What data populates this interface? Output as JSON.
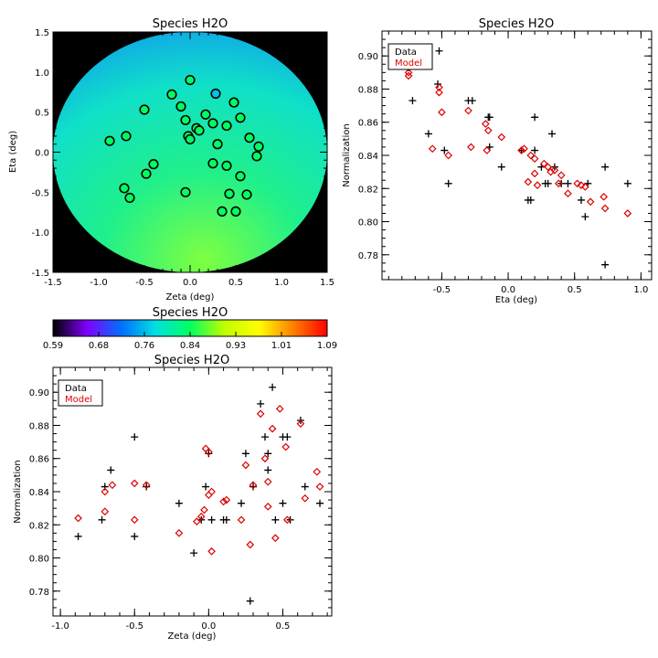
{
  "chart_data": [
    {
      "id": "map",
      "type": "scatter",
      "title": "Species H2O",
      "xlabel": "Zeta (deg)",
      "ylabel": "Eta (deg)",
      "xlim": [
        -1.5,
        1.5
      ],
      "ylim": [
        -1.5,
        1.5
      ],
      "xticks": [
        "-1.5",
        "-1.0",
        "-0.5",
        "0.0",
        "0.5",
        "1.0",
        "1.5"
      ],
      "yticks": [
        "-1.5",
        "-1.0",
        "-0.5",
        "0.0",
        "0.5",
        "1.0",
        "1.5"
      ],
      "background_color": "#000000",
      "field": {
        "shape": "circle",
        "radius": 1.5,
        "value_low_corner": 0.9,
        "value_high_corner": 0.78
      },
      "points": [
        {
          "x": -0.88,
          "y": 0.14,
          "v": 0.84
        },
        {
          "x": -0.7,
          "y": 0.2,
          "v": 0.84
        },
        {
          "x": -0.72,
          "y": -0.45,
          "v": 0.84
        },
        {
          "x": -0.66,
          "y": -0.57,
          "v": 0.84
        },
        {
          "x": -0.5,
          "y": 0.53,
          "v": 0.84
        },
        {
          "x": -0.48,
          "y": -0.27,
          "v": 0.84
        },
        {
          "x": -0.4,
          "y": -0.15,
          "v": 0.84
        },
        {
          "x": -0.2,
          "y": 0.72,
          "v": 0.84
        },
        {
          "x": -0.1,
          "y": 0.57,
          "v": 0.84
        },
        {
          "x": -0.05,
          "y": 0.4,
          "v": 0.84
        },
        {
          "x": -0.02,
          "y": 0.2,
          "v": 0.84
        },
        {
          "x": 0.0,
          "y": 0.16,
          "v": 0.84
        },
        {
          "x": 0.0,
          "y": 0.9,
          "v": 0.84
        },
        {
          "x": 0.07,
          "y": 0.3,
          "v": 0.84
        },
        {
          "x": 0.1,
          "y": 0.27,
          "v": 0.84
        },
        {
          "x": -0.05,
          "y": -0.5,
          "v": 0.84
        },
        {
          "x": 0.17,
          "y": 0.47,
          "v": 0.84
        },
        {
          "x": 0.25,
          "y": 0.36,
          "v": 0.84
        },
        {
          "x": 0.28,
          "y": 0.73,
          "v": 0.76
        },
        {
          "x": 0.3,
          "y": 0.1,
          "v": 0.84
        },
        {
          "x": 0.25,
          "y": -0.14,
          "v": 0.84
        },
        {
          "x": 0.4,
          "y": 0.33,
          "v": 0.84
        },
        {
          "x": 0.4,
          "y": -0.17,
          "v": 0.84
        },
        {
          "x": 0.43,
          "y": -0.52,
          "v": 0.84
        },
        {
          "x": 0.35,
          "y": -0.74,
          "v": 0.84
        },
        {
          "x": 0.5,
          "y": -0.74,
          "v": 0.84
        },
        {
          "x": 0.48,
          "y": 0.62,
          "v": 0.84
        },
        {
          "x": 0.55,
          "y": 0.43,
          "v": 0.84
        },
        {
          "x": 0.55,
          "y": -0.3,
          "v": 0.84
        },
        {
          "x": 0.62,
          "y": -0.53,
          "v": 0.84
        },
        {
          "x": 0.65,
          "y": 0.18,
          "v": 0.84
        },
        {
          "x": 0.75,
          "y": 0.07,
          "v": 0.84
        },
        {
          "x": 0.73,
          "y": -0.05,
          "v": 0.84
        }
      ]
    },
    {
      "id": "colorbar",
      "type": "heatmap",
      "title": "Species H2O",
      "vmin": 0.59,
      "vmax": 1.09,
      "ticks": [
        "0.59",
        "0.68",
        "0.76",
        "0.84",
        "0.93",
        "1.01",
        "1.09"
      ],
      "colormap": [
        "#000000",
        "#8000ff",
        "#0070ff",
        "#00e0e0",
        "#00ff60",
        "#c0ff00",
        "#ffff00",
        "#ff8000",
        "#ff0000"
      ]
    },
    {
      "id": "eta",
      "type": "scatter",
      "title": "Species H2O",
      "xlabel": "Eta (deg)",
      "ylabel": "Normalization",
      "xlim": [
        -0.95,
        1.08
      ],
      "ylim": [
        0.765,
        0.915
      ],
      "xticks": [
        "-0.5",
        "0.0",
        "0.5",
        "1.0"
      ],
      "yticks": [
        "0.78",
        "0.80",
        "0.82",
        "0.84",
        "0.86",
        "0.88",
        "0.90"
      ],
      "legend": {
        "placement": "top-left",
        "entries": [
          "Data",
          "Model"
        ]
      },
      "series": [
        {
          "name": "Data",
          "marker": "plus",
          "color": "#000000",
          "points": [
            [
              -0.75,
              0.893
            ],
            [
              -0.72,
              0.873
            ],
            [
              -0.52,
              0.903
            ],
            [
              -0.53,
              0.883
            ],
            [
              -0.48,
              0.843
            ],
            [
              -0.45,
              0.823
            ],
            [
              -0.6,
              0.853
            ],
            [
              -0.3,
              0.873
            ],
            [
              -0.27,
              0.873
            ],
            [
              -0.15,
              0.863
            ],
            [
              -0.14,
              0.863
            ],
            [
              -0.14,
              0.845
            ],
            [
              -0.05,
              0.833
            ],
            [
              0.1,
              0.843
            ],
            [
              0.15,
              0.813
            ],
            [
              0.17,
              0.813
            ],
            [
              0.2,
              0.863
            ],
            [
              0.2,
              0.843
            ],
            [
              0.25,
              0.833
            ],
            [
              0.28,
              0.823
            ],
            [
              0.3,
              0.823
            ],
            [
              0.33,
              0.853
            ],
            [
              0.35,
              0.833
            ],
            [
              0.4,
              0.823
            ],
            [
              0.45,
              0.823
            ],
            [
              0.55,
              0.813
            ],
            [
              0.6,
              0.823
            ],
            [
              0.58,
              0.803
            ],
            [
              0.73,
              0.833
            ],
            [
              0.73,
              0.774
            ],
            [
              0.9,
              0.823
            ]
          ]
        },
        {
          "name": "Model",
          "marker": "diamond",
          "color": "#dd0000",
          "points": [
            [
              -0.75,
              0.888
            ],
            [
              -0.75,
              0.89
            ],
            [
              -0.52,
              0.881
            ],
            [
              -0.52,
              0.878
            ],
            [
              -0.5,
              0.866
            ],
            [
              -0.45,
              0.84
            ],
            [
              -0.57,
              0.844
            ],
            [
              -0.3,
              0.867
            ],
            [
              -0.28,
              0.845
            ],
            [
              -0.17,
              0.859
            ],
            [
              -0.15,
              0.855
            ],
            [
              -0.16,
              0.843
            ],
            [
              -0.05,
              0.851
            ],
            [
              0.1,
              0.843
            ],
            [
              0.12,
              0.844
            ],
            [
              0.15,
              0.824
            ],
            [
              0.17,
              0.84
            ],
            [
              0.2,
              0.838
            ],
            [
              0.2,
              0.829
            ],
            [
              0.22,
              0.822
            ],
            [
              0.27,
              0.835
            ],
            [
              0.3,
              0.833
            ],
            [
              0.32,
              0.83
            ],
            [
              0.35,
              0.831
            ],
            [
              0.38,
              0.823
            ],
            [
              0.4,
              0.828
            ],
            [
              0.45,
              0.817
            ],
            [
              0.52,
              0.823
            ],
            [
              0.55,
              0.822
            ],
            [
              0.58,
              0.821
            ],
            [
              0.62,
              0.812
            ],
            [
              0.72,
              0.815
            ],
            [
              0.73,
              0.808
            ],
            [
              0.9,
              0.805
            ]
          ]
        }
      ]
    },
    {
      "id": "zeta",
      "type": "scatter",
      "title": "Species H2O",
      "xlabel": "Zeta (deg)",
      "ylabel": "Normalization",
      "xlim": [
        -1.05,
        0.83
      ],
      "ylim": [
        0.765,
        0.915
      ],
      "xticks": [
        "-1.0",
        "-0.5",
        "0.0",
        "0.5"
      ],
      "yticks": [
        "0.78",
        "0.80",
        "0.82",
        "0.84",
        "0.86",
        "0.88",
        "0.90"
      ],
      "legend": {
        "placement": "top-left",
        "entries": [
          "Data",
          "Model"
        ]
      },
      "series": [
        {
          "name": "Data",
          "marker": "plus",
          "color": "#000000",
          "points": [
            [
              -0.88,
              0.813
            ],
            [
              -0.72,
              0.823
            ],
            [
              -0.7,
              0.843
            ],
            [
              -0.66,
              0.853
            ],
            [
              -0.5,
              0.873
            ],
            [
              -0.5,
              0.813
            ],
            [
              -0.42,
              0.843
            ],
            [
              -0.2,
              0.833
            ],
            [
              -0.1,
              0.803
            ],
            [
              -0.05,
              0.823
            ],
            [
              -0.02,
              0.843
            ],
            [
              0.0,
              0.863
            ],
            [
              0.02,
              0.823
            ],
            [
              0.1,
              0.823
            ],
            [
              0.12,
              0.823
            ],
            [
              0.22,
              0.833
            ],
            [
              0.25,
              0.863
            ],
            [
              0.28,
              0.774
            ],
            [
              0.3,
              0.843
            ],
            [
              0.35,
              0.893
            ],
            [
              0.38,
              0.873
            ],
            [
              0.4,
              0.863
            ],
            [
              0.4,
              0.853
            ],
            [
              0.43,
              0.903
            ],
            [
              0.45,
              0.823
            ],
            [
              0.5,
              0.873
            ],
            [
              0.5,
              0.833
            ],
            [
              0.53,
              0.873
            ],
            [
              0.55,
              0.823
            ],
            [
              0.62,
              0.883
            ],
            [
              0.65,
              0.843
            ],
            [
              0.75,
              0.833
            ]
          ]
        },
        {
          "name": "Model",
          "marker": "diamond",
          "color": "#dd0000",
          "points": [
            [
              -0.88,
              0.824
            ],
            [
              -0.7,
              0.84
            ],
            [
              -0.7,
              0.828
            ],
            [
              -0.65,
              0.844
            ],
            [
              -0.5,
              0.845
            ],
            [
              -0.5,
              0.823
            ],
            [
              -0.42,
              0.844
            ],
            [
              -0.2,
              0.815
            ],
            [
              -0.08,
              0.822
            ],
            [
              -0.05,
              0.825
            ],
            [
              -0.03,
              0.829
            ],
            [
              -0.02,
              0.866
            ],
            [
              0.0,
              0.864
            ],
            [
              0.0,
              0.838
            ],
            [
              0.02,
              0.804
            ],
            [
              0.02,
              0.84
            ],
            [
              0.1,
              0.834
            ],
            [
              0.12,
              0.835
            ],
            [
              0.22,
              0.823
            ],
            [
              0.25,
              0.856
            ],
            [
              0.28,
              0.808
            ],
            [
              0.3,
              0.844
            ],
            [
              0.35,
              0.887
            ],
            [
              0.38,
              0.86
            ],
            [
              0.4,
              0.846
            ],
            [
              0.4,
              0.831
            ],
            [
              0.43,
              0.878
            ],
            [
              0.45,
              0.812
            ],
            [
              0.48,
              0.89
            ],
            [
              0.52,
              0.867
            ],
            [
              0.53,
              0.823
            ],
            [
              0.62,
              0.881
            ],
            [
              0.65,
              0.836
            ],
            [
              0.73,
              0.852
            ],
            [
              0.75,
              0.843
            ]
          ]
        }
      ]
    }
  ]
}
